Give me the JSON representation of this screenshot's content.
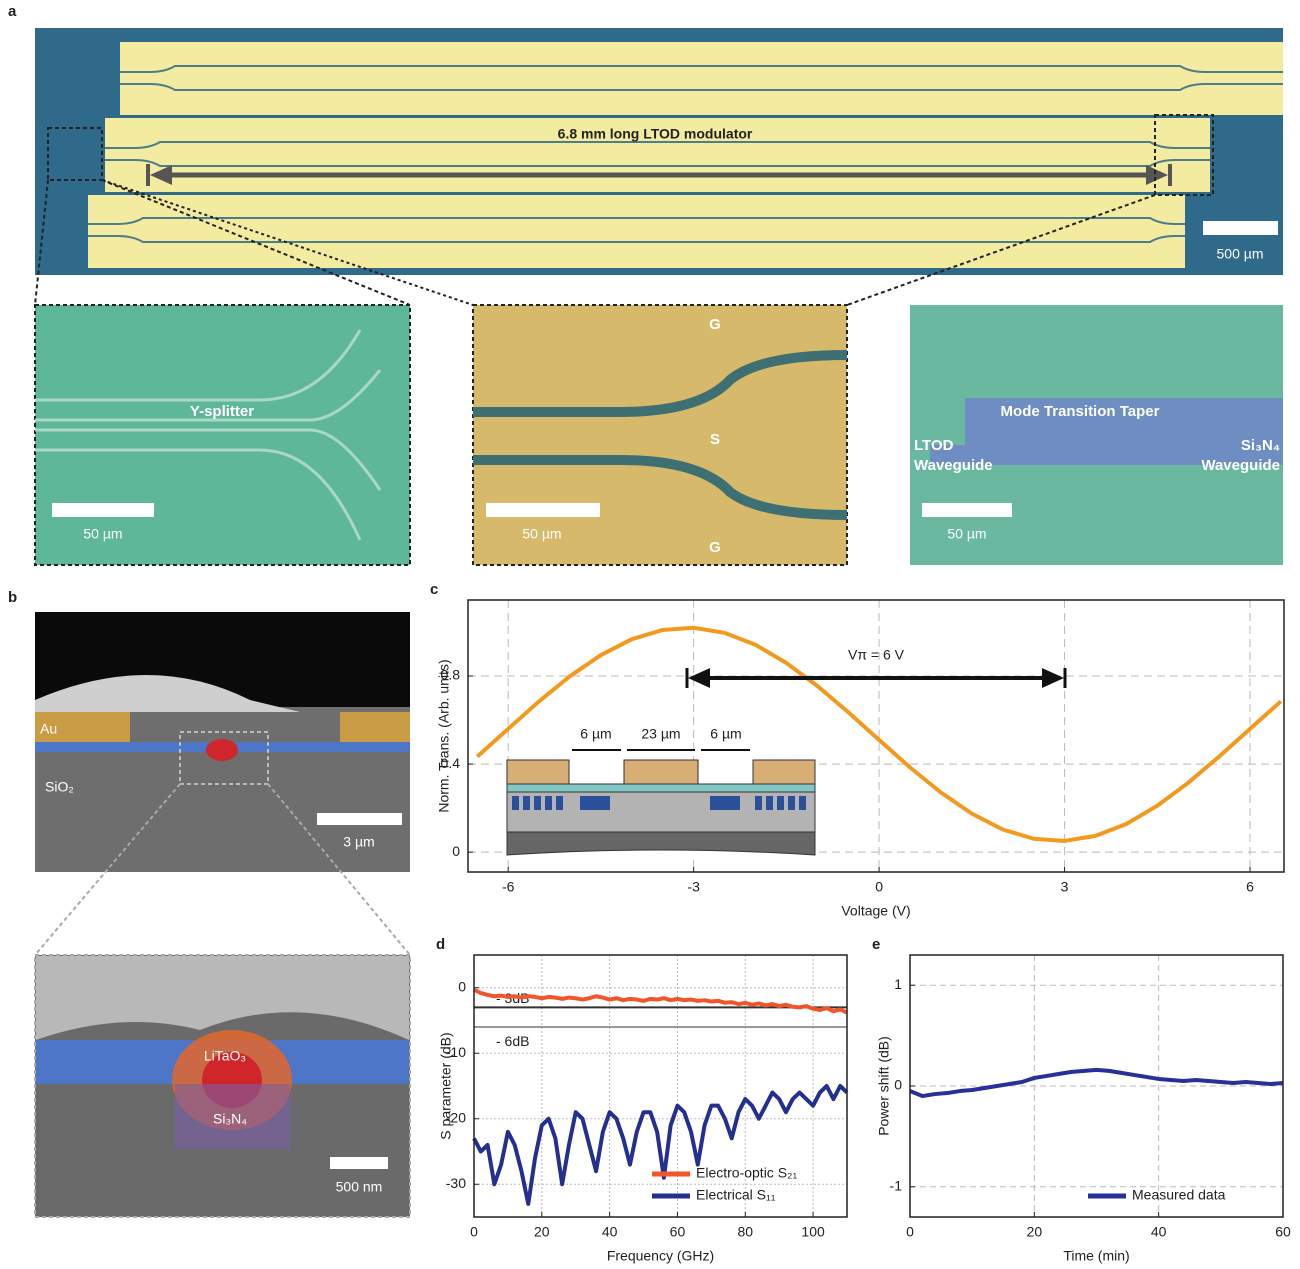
{
  "figure": {
    "panel_a": {
      "label": "a",
      "title": "6.8 mm long LTOD modulator",
      "scale": "500 µm",
      "inset_1": {
        "label": "Y-splitter",
        "scale": "50 µm"
      },
      "inset_2": {
        "labels": [
          "G",
          "S",
          "G"
        ],
        "scale": "50 µm"
      },
      "inset_3": {
        "labels": [
          "Mode Transition Taper",
          "LTOD",
          "Waveguide",
          "Si₃N₄",
          "Waveguide"
        ],
        "scale": "50 µm"
      }
    },
    "panel_b": {
      "label": "b",
      "top": {
        "labels": [
          "Au",
          "SiO₂"
        ],
        "scale": "3 µm"
      },
      "bottom": {
        "labels": [
          "LiTaO₃",
          "Si₃N₄"
        ],
        "scale": "500 nm"
      }
    }
  },
  "chart_data": [
    {
      "type": "line",
      "panel": "c",
      "xlabel": "Voltage (V)",
      "ylabel": "Norm. Trans. (Arb. units)",
      "annotation": "Vπ = 6 V",
      "inset_labels": [
        "6 µm",
        "23 µm",
        "6 µm"
      ],
      "x": [
        -6.5,
        -6,
        -5.5,
        -5,
        -4.5,
        -4,
        -3.5,
        -3,
        -2.5,
        -2,
        -1.5,
        -1,
        -0.5,
        0,
        0.5,
        1,
        1.5,
        2,
        2.5,
        3,
        3.5,
        4,
        4.5,
        5,
        5.5,
        6,
        6.5
      ],
      "values": [
        0.434,
        0.56,
        0.685,
        0.799,
        0.895,
        0.967,
        1.009,
        1.019,
        0.996,
        0.942,
        0.859,
        0.755,
        0.636,
        0.51,
        0.385,
        0.271,
        0.175,
        0.103,
        0.061,
        0.051,
        0.074,
        0.128,
        0.211,
        0.315,
        0.434,
        0.56,
        0.685
      ],
      "color": "#f39a1e",
      "xlim": [
        -6.65,
        6.55
      ],
      "xticks": [
        -6,
        -3,
        0,
        3,
        6
      ],
      "ylim": [
        -0.09,
        1.145
      ],
      "yticks": [
        0,
        0.4,
        0.8
      ],
      "grid": true
    },
    {
      "type": "line",
      "panel": "d",
      "xlabel": "Frequency (GHz)",
      "ylabel": "S parameter (dB)",
      "x": [
        0,
        2,
        4,
        6,
        8,
        10,
        12,
        14,
        16,
        18,
        20,
        22,
        24,
        26,
        28,
        30,
        32,
        34,
        36,
        38,
        40,
        42,
        44,
        46,
        48,
        50,
        52,
        54,
        56,
        58,
        60,
        62,
        64,
        66,
        68,
        70,
        72,
        74,
        76,
        78,
        80,
        82,
        84,
        86,
        88,
        90,
        92,
        94,
        96,
        98,
        100,
        102,
        104,
        106,
        108,
        110
      ],
      "series": [
        {
          "name": "Electro-optic S₂₁",
          "color": "#f0562a",
          "values": [
            -0.3,
            -0.8,
            -1.1,
            -1.3,
            -1.2,
            -1.4,
            -1.3,
            -1.5,
            -1.3,
            -1.4,
            -1.6,
            -1.4,
            -1.5,
            -1.7,
            -1.5,
            -1.6,
            -1.8,
            -1.6,
            -1.3,
            -1.5,
            -1.8,
            -1.6,
            -1.9,
            -1.7,
            -1.8,
            -2.0,
            -1.7,
            -1.8,
            -1.6,
            -1.9,
            -1.7,
            -1.9,
            -1.8,
            -2.0,
            -1.9,
            -2.1,
            -2.0,
            -2.3,
            -2.2,
            -2.5,
            -2.3,
            -2.6,
            -2.4,
            -2.7,
            -2.5,
            -2.8,
            -2.6,
            -2.9,
            -3.0,
            -2.8,
            -3.2,
            -3.4,
            -3.1,
            -3.6,
            -3.3,
            -3.8
          ]
        },
        {
          "name": "Electrical S₁₁",
          "color": "#252f8f",
          "values": [
            -23,
            -25,
            -24,
            -30,
            -27,
            -22,
            -24,
            -28,
            -33,
            -26,
            -21,
            -20,
            -23,
            -30,
            -24,
            -19,
            -20,
            -24,
            -28,
            -22,
            -19,
            -20,
            -23,
            -27,
            -22,
            -19,
            -19,
            -22,
            -29,
            -21,
            -18,
            -19,
            -22,
            -27,
            -21,
            -18,
            -18,
            -20,
            -23,
            -19,
            -17,
            -18,
            -20,
            -18,
            -16,
            -17,
            -19,
            -17,
            -16,
            -17,
            -18,
            -16,
            -15,
            -17,
            -15,
            -16
          ]
        }
      ],
      "reference_lines": [
        {
          "value": -3,
          "label": "- 3dB",
          "color": "#333333"
        },
        {
          "value": -6,
          "label": "- 6dB",
          "color": "#999999"
        }
      ],
      "xlim": [
        0,
        110
      ],
      "xticks": [
        0,
        20,
        40,
        60,
        80,
        100
      ],
      "ylim": [
        -35,
        5
      ],
      "yticks": [
        -30,
        -20,
        -10,
        0
      ],
      "grid": true,
      "legend": "bottom-right"
    },
    {
      "type": "line",
      "panel": "e",
      "xlabel": "Time (min)",
      "ylabel": "Power shift (dB)",
      "x": [
        0,
        2,
        4,
        6,
        8,
        10,
        12,
        14,
        16,
        18,
        20,
        22,
        24,
        26,
        28,
        30,
        32,
        34,
        36,
        38,
        40,
        42,
        44,
        46,
        48,
        50,
        52,
        54,
        56,
        58,
        60
      ],
      "series": [
        {
          "name": "Measured data",
          "color": "#28309a",
          "values": [
            -0.05,
            -0.1,
            -0.08,
            -0.07,
            -0.05,
            -0.04,
            -0.02,
            0,
            0.02,
            0.04,
            0.08,
            0.1,
            0.12,
            0.14,
            0.15,
            0.16,
            0.15,
            0.13,
            0.11,
            0.09,
            0.07,
            0.06,
            0.05,
            0.06,
            0.05,
            0.04,
            0.03,
            0.04,
            0.03,
            0.02,
            0.03
          ]
        }
      ],
      "xlim": [
        0,
        60
      ],
      "xticks": [
        0,
        20,
        40,
        60
      ],
      "ylim": [
        -1.3,
        1.3
      ],
      "yticks": [
        -1,
        0,
        1
      ],
      "grid": true,
      "legend": "bottom-right"
    }
  ]
}
